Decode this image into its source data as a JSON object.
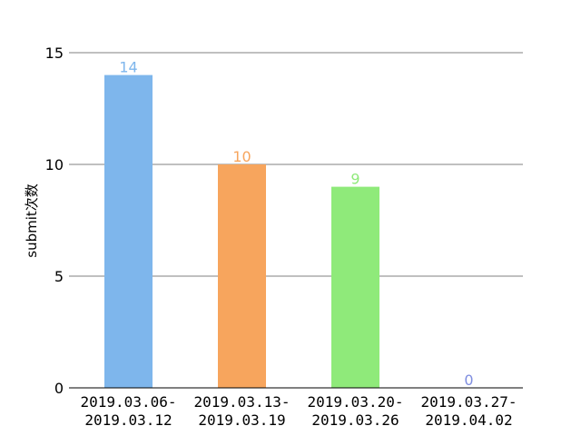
{
  "chart_data": {
    "type": "bar",
    "title": "",
    "xlabel": "",
    "ylabel": "submit次数",
    "categories": [
      [
        "2019.03.06-",
        "2019.03.12"
      ],
      [
        "2019.03.13-",
        "2019.03.19"
      ],
      [
        "2019.03.20-",
        "2019.03.26"
      ],
      [
        "2019.03.27-",
        "2019.04.02"
      ]
    ],
    "values": [
      14,
      10,
      9,
      0
    ],
    "colors": [
      "#7eb6ec",
      "#f7a55d",
      "#8fea7a",
      "#7f8ee0"
    ],
    "ylim": [
      0,
      15
    ],
    "yticks": [
      "0",
      "5",
      "10",
      "15"
    ],
    "grid": true,
    "data_labels": [
      "14",
      "10",
      "9",
      "0"
    ]
  }
}
